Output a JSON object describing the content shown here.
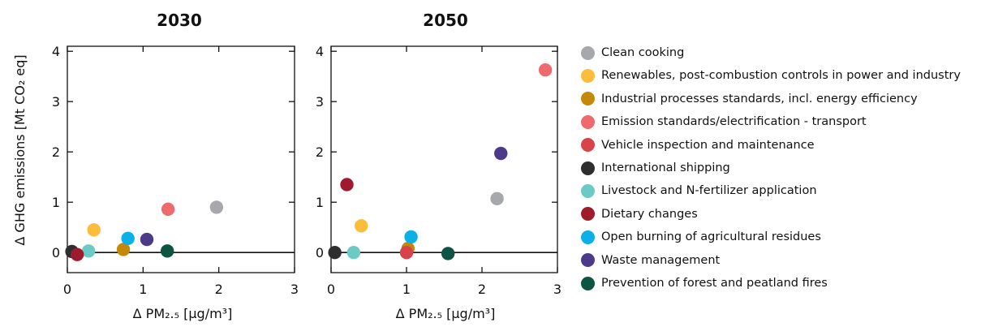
{
  "chart_data": [
    {
      "type": "scatter",
      "title": "2030",
      "xlim": [
        0,
        3
      ],
      "ylim": [
        -0.4,
        4.1
      ],
      "xticks": [
        "0",
        "1",
        "2",
        "3"
      ],
      "yticks": [
        "0",
        "1",
        "2",
        "3",
        "4"
      ],
      "points": [
        {
          "series": "Clean cooking",
          "x": 1.97,
          "y": 0.9
        },
        {
          "series": "Renewables, post-combustion controls in power and industry",
          "x": 0.35,
          "y": 0.45
        },
        {
          "series": "Industrial processes standards, incl. energy efficiency",
          "x": 0.74,
          "y": 0.06
        },
        {
          "series": "Emission standards/electrification - transport",
          "x": 1.33,
          "y": 0.86
        },
        {
          "series": "International shipping",
          "x": 0.06,
          "y": 0.02
        },
        {
          "series": "Livestock and N-fertilizer application",
          "x": 0.28,
          "y": 0.03
        },
        {
          "series": "Dietary changes",
          "x": 0.13,
          "y": -0.04
        },
        {
          "series": "Open burning of agricultural residues",
          "x": 0.8,
          "y": 0.28
        },
        {
          "series": "Waste management",
          "x": 1.05,
          "y": 0.26
        },
        {
          "series": "Prevention of forest and peatland fires",
          "x": 1.32,
          "y": 0.03
        }
      ]
    },
    {
      "type": "scatter",
      "title": "2050",
      "xlim": [
        0,
        3
      ],
      "ylim": [
        -0.4,
        4.1
      ],
      "xticks": [
        "0",
        "1",
        "2",
        "3"
      ],
      "yticks": [
        "0",
        "1",
        "2",
        "3",
        "4"
      ],
      "points": [
        {
          "series": "Clean cooking",
          "x": 2.2,
          "y": 1.07
        },
        {
          "series": "Renewables, post-combustion controls in power and industry",
          "x": 0.4,
          "y": 0.53
        },
        {
          "series": "Industrial processes standards, incl. energy efficiency",
          "x": 1.02,
          "y": 0.08
        },
        {
          "series": "Emission standards/electrification - transport",
          "x": 2.84,
          "y": 3.63
        },
        {
          "series": "Vehicle inspection and maintenance",
          "x": 1.0,
          "y": 0.0
        },
        {
          "series": "International shipping",
          "x": 0.05,
          "y": 0.0
        },
        {
          "series": "Livestock and N-fertilizer application",
          "x": 0.3,
          "y": 0.0
        },
        {
          "series": "Dietary changes",
          "x": 0.21,
          "y": 1.35
        },
        {
          "series": "Open burning of agricultural residues",
          "x": 1.06,
          "y": 0.31
        },
        {
          "series": "Waste management",
          "x": 2.25,
          "y": 1.97
        },
        {
          "series": "Prevention of forest and peatland fires",
          "x": 1.55,
          "y": -0.02
        }
      ]
    }
  ],
  "axes": {
    "ylabel": "Δ GHG emissions [Mt CO₂ eq]",
    "xlabel": "Δ PM₂.₅ [μg/m³]"
  },
  "legend": {
    "placement": "right",
    "items": [
      {
        "label": "Clean cooking",
        "color": "#a7a8ad"
      },
      {
        "label": "Renewables, post-combustion controls in power and industry",
        "color": "#fbbd3b"
      },
      {
        "label": "Industrial processes standards, incl. energy efficiency",
        "color": "#c4890b"
      },
      {
        "label": "Emission standards/electrification - transport",
        "color": "#ee6a6d"
      },
      {
        "label": "Vehicle inspection and maintenance",
        "color": "#d8434a"
      },
      {
        "label": "International shipping",
        "color": "#2e2e2e"
      },
      {
        "label": "Livestock and N-fertilizer application",
        "color": "#6ccac4"
      },
      {
        "label": "Dietary changes",
        "color": "#9e1b2e"
      },
      {
        "label": "Open burning of agricultural residues",
        "color": "#0bb0e6"
      },
      {
        "label": "Waste management",
        "color": "#4e3a8a"
      },
      {
        "label": "Prevention of forest and peatland fires",
        "color": "#0c5444"
      }
    ]
  }
}
